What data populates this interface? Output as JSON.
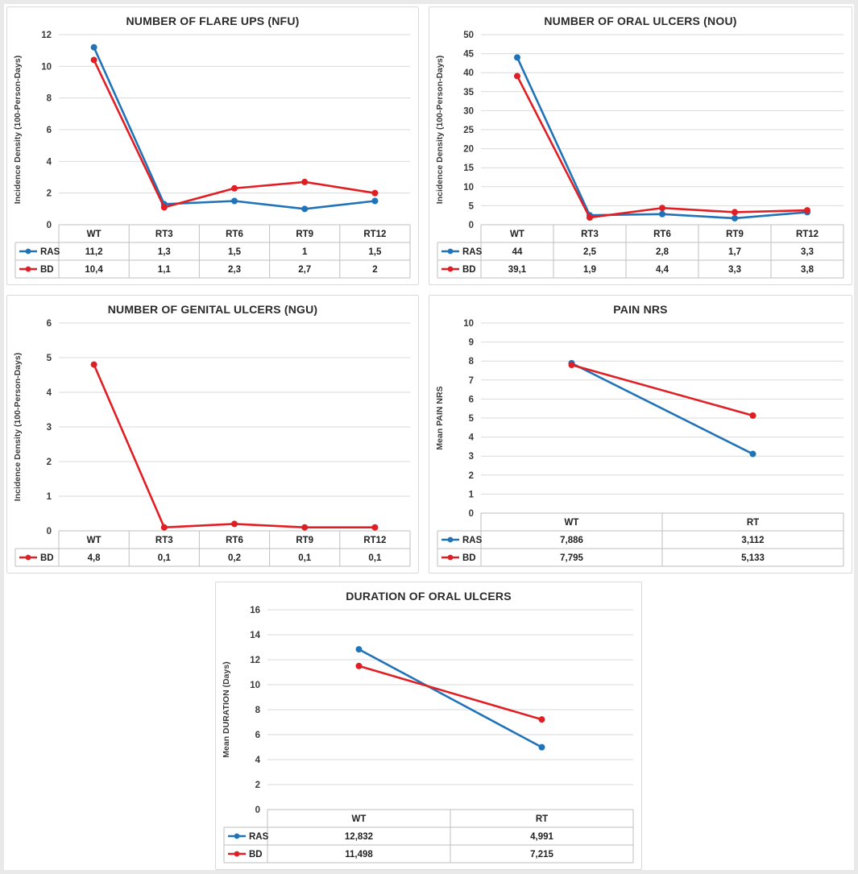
{
  "page": {
    "background": "#ffffff",
    "panel_border": "#d9d9d9",
    "grid_color": "#d9d9d9",
    "table_border": "#bfbfbf",
    "text_color": "#3a3a3a"
  },
  "chart_data": [
    {
      "type": "line",
      "id": "nfu",
      "title": "NUMBER OF FLARE UPS (NFU)",
      "ylabel": "Incidence Density (100-Person-Days)",
      "ylim": [
        0,
        12
      ],
      "ystep": 2,
      "yticks": [
        0,
        2,
        4,
        6,
        8,
        10,
        12
      ],
      "grid": true,
      "legend_position": "table-left",
      "categories": [
        "WT",
        "RT3",
        "RT6",
        "RT9",
        "RT12"
      ],
      "series": [
        {
          "name": "RAS",
          "color": "#2173b8",
          "values": [
            11.2,
            1.3,
            1.5,
            1,
            1.5
          ],
          "display": [
            "11,2",
            "1,3",
            "1,5",
            "1",
            "1,5"
          ]
        },
        {
          "name": "BD",
          "color": "#e01f25",
          "values": [
            10.4,
            1.1,
            2.3,
            2.7,
            2
          ],
          "display": [
            "10,4",
            "1,1",
            "2,3",
            "2,7",
            "2"
          ]
        }
      ]
    },
    {
      "type": "line",
      "id": "nou",
      "title": "NUMBER OF ORAL ULCERS (NOU)",
      "ylabel": "Incidence Density (100-Person-Days)",
      "ylim": [
        0,
        50
      ],
      "ystep": 5,
      "yticks": [
        0,
        5,
        10,
        15,
        20,
        25,
        30,
        35,
        40,
        45,
        50
      ],
      "grid": true,
      "legend_position": "table-left",
      "categories": [
        "WT",
        "RT3",
        "RT6",
        "RT9",
        "RT12"
      ],
      "series": [
        {
          "name": "RAS",
          "color": "#2173b8",
          "values": [
            44,
            2.5,
            2.8,
            1.7,
            3.3
          ],
          "display": [
            "44",
            "2,5",
            "2,8",
            "1,7",
            "3,3"
          ]
        },
        {
          "name": "BD",
          "color": "#e01f25",
          "values": [
            39.1,
            1.9,
            4.4,
            3.3,
            3.8
          ],
          "display": [
            "39,1",
            "1,9",
            "4,4",
            "3,3",
            "3,8"
          ]
        }
      ]
    },
    {
      "type": "line",
      "id": "ngu",
      "title": "NUMBER OF GENITAL ULCERS (NGU)",
      "ylabel": "Incidence Density (100-Person-Days)",
      "ylim": [
        0,
        6
      ],
      "ystep": 1,
      "yticks": [
        0,
        1,
        2,
        3,
        4,
        5,
        6
      ],
      "grid": true,
      "legend_position": "table-left",
      "categories": [
        "WT",
        "RT3",
        "RT6",
        "RT9",
        "RT12"
      ],
      "series": [
        {
          "name": "BD",
          "color": "#e01f25",
          "values": [
            4.8,
            0.1,
            0.2,
            0.1,
            0.1
          ],
          "display": [
            "4,8",
            "0,1",
            "0,2",
            "0,1",
            "0,1"
          ]
        }
      ]
    },
    {
      "type": "line",
      "id": "pain",
      "title": "PAIN NRS",
      "ylabel": "Mean PAIN NRS",
      "ylim": [
        0,
        10
      ],
      "ystep": 1,
      "yticks": [
        0,
        1,
        2,
        3,
        4,
        5,
        6,
        7,
        8,
        9,
        10
      ],
      "grid": true,
      "legend_position": "table-left",
      "categories": [
        "WT",
        "RT"
      ],
      "series": [
        {
          "name": "RAS",
          "color": "#2173b8",
          "values": [
            7.886,
            3.112
          ],
          "display": [
            "7,886",
            "3,112"
          ]
        },
        {
          "name": "BD",
          "color": "#e01f25",
          "values": [
            7.795,
            5.133
          ],
          "display": [
            "7,795",
            "5,133"
          ]
        }
      ]
    },
    {
      "type": "line",
      "id": "dur",
      "title": "DURATION OF ORAL ULCERS",
      "ylabel": "Mean DURATION (Days)",
      "ylim": [
        0,
        16
      ],
      "ystep": 2,
      "yticks": [
        0,
        2,
        4,
        6,
        8,
        10,
        12,
        14,
        16
      ],
      "grid": true,
      "legend_position": "table-left",
      "categories": [
        "WT",
        "RT"
      ],
      "series": [
        {
          "name": "RAS",
          "color": "#2173b8",
          "values": [
            12.832,
            4.991
          ],
          "display": [
            "12,832",
            "4,991"
          ]
        },
        {
          "name": "BD",
          "color": "#e01f25",
          "values": [
            11.498,
            7.215
          ],
          "display": [
            "11,498",
            "7,215"
          ]
        }
      ]
    }
  ]
}
